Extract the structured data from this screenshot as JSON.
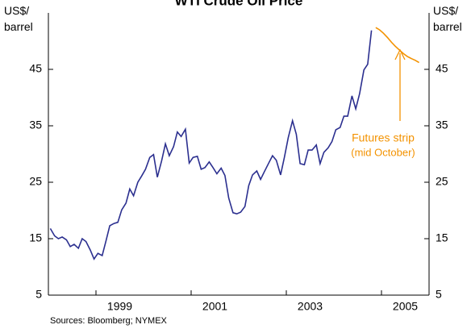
{
  "chart_data": {
    "type": "line",
    "title": "WTI Crude Oil Price",
    "y_label": "US$/ barrel",
    "y2_label": "US$/ barrel",
    "source": "Sources: Bloomberg; NYMEX",
    "annotation": [
      "Futures strip",
      "(mid October)"
    ],
    "xlim": [
      1998,
      2006
    ],
    "xticks": [
      {
        "value": 1999,
        "label": "1999"
      },
      {
        "value": 2001,
        "label": "2001"
      },
      {
        "value": 2003,
        "label": "2003"
      },
      {
        "value": 2005,
        "label": "2005"
      }
    ],
    "ylim": [
      5,
      55
    ],
    "yticks": [
      5,
      15,
      25,
      35,
      45
    ],
    "y2lim": [
      5,
      55
    ],
    "y2ticks": [
      5,
      15,
      25,
      35,
      45
    ],
    "series": [
      {
        "name": "WTI",
        "color": "#2b2f8f",
        "x": [
          1998.04,
          1998.13,
          1998.21,
          1998.29,
          1998.38,
          1998.46,
          1998.54,
          1998.63,
          1998.71,
          1998.79,
          1998.88,
          1998.96,
          1999.04,
          1999.13,
          1999.21,
          1999.29,
          1999.38,
          1999.46,
          1999.54,
          1999.63,
          1999.71,
          1999.79,
          1999.88,
          1999.96,
          2000.04,
          2000.13,
          2000.21,
          2000.29,
          2000.38,
          2000.46,
          2000.54,
          2000.63,
          2000.71,
          2000.79,
          2000.88,
          2000.96,
          2001.04,
          2001.13,
          2001.21,
          2001.29,
          2001.38,
          2001.46,
          2001.54,
          2001.63,
          2001.71,
          2001.79,
          2001.88,
          2001.96,
          2002.04,
          2002.13,
          2002.21,
          2002.29,
          2002.38,
          2002.46,
          2002.54,
          2002.63,
          2002.71,
          2002.79,
          2002.88,
          2002.96,
          2003.04,
          2003.13,
          2003.21,
          2003.29,
          2003.38,
          2003.46,
          2003.54,
          2003.63,
          2003.71,
          2003.79,
          2003.88,
          2003.96,
          2004.04,
          2004.13,
          2004.21,
          2004.29,
          2004.38,
          2004.46,
          2004.54,
          2004.63,
          2004.71,
          2004.79
        ],
        "values": [
          16.8,
          15.5,
          15.0,
          15.3,
          14.8,
          13.6,
          14.0,
          13.3,
          15.0,
          14.5,
          13.0,
          11.4,
          12.4,
          12.0,
          14.6,
          17.3,
          17.7,
          17.9,
          20.1,
          21.3,
          23.8,
          22.6,
          25.0,
          26.1,
          27.3,
          29.4,
          29.9,
          25.9,
          28.8,
          31.8,
          29.7,
          31.3,
          33.9,
          33.1,
          34.4,
          28.4,
          29.4,
          29.6,
          27.3,
          27.6,
          28.6,
          27.6,
          26.5,
          27.5,
          26.2,
          22.2,
          19.6,
          19.4,
          19.7,
          20.7,
          24.4,
          26.3,
          27.0,
          25.5,
          26.9,
          28.4,
          29.7,
          28.9,
          26.3,
          29.4,
          32.9,
          35.9,
          33.5,
          28.3,
          28.1,
          30.7,
          30.7,
          31.6,
          28.3,
          30.3,
          31.1,
          32.2,
          34.3,
          34.7,
          36.7,
          36.7,
          40.3,
          38.0,
          40.7,
          44.9,
          45.9,
          51.9
        ]
      },
      {
        "name": "Futures strip",
        "color": "#f39200",
        "x": [
          2004.88,
          2004.96,
          2005.04,
          2005.13,
          2005.21,
          2005.29,
          2005.38,
          2005.46,
          2005.54,
          2005.63,
          2005.71,
          2005.79
        ],
        "values": [
          52.4,
          52.0,
          51.4,
          50.6,
          49.8,
          49.1,
          48.4,
          47.8,
          47.3,
          46.9,
          46.6,
          46.2
        ]
      }
    ]
  }
}
